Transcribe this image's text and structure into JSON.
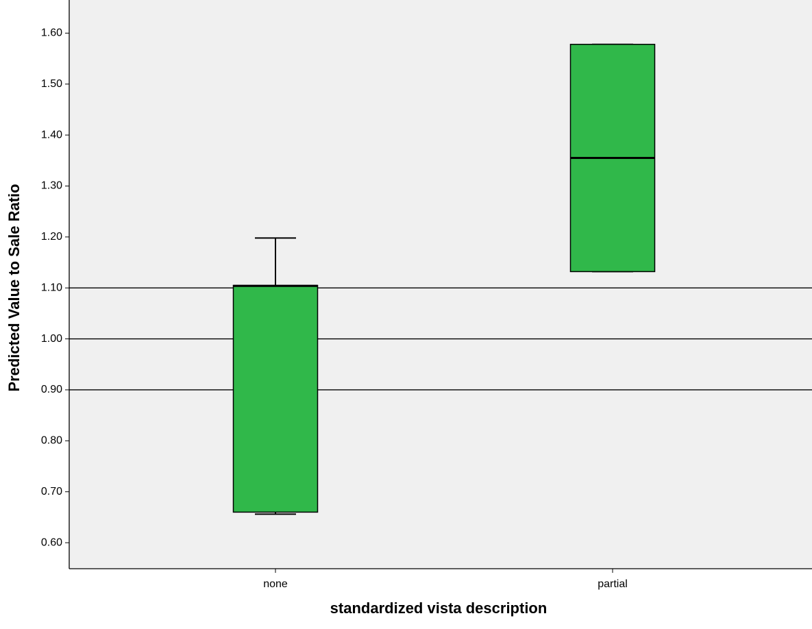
{
  "chart_data": {
    "type": "box",
    "x_label": "standardized vista description",
    "y_label": "Predicted Value to Sale Ratio",
    "categories": [
      "none",
      "partial"
    ],
    "min": [
      0.656,
      1.132
    ],
    "q1": [
      0.66,
      1.132
    ],
    "median": [
      1.104,
      1.355
    ],
    "q3": [
      1.105,
      1.578
    ],
    "max": [
      1.198,
      1.578
    ],
    "color": "#30b84a",
    "ylim": [
      0.549,
      1.665
    ],
    "yticks": [
      {
        "value": 0.6,
        "label": "0.60"
      },
      {
        "value": 0.7,
        "label": "0.70"
      },
      {
        "value": 0.8,
        "label": "0.80"
      },
      {
        "value": 0.9,
        "label": "0.90"
      },
      {
        "value": 1.0,
        "label": "1.00"
      },
      {
        "value": 1.1,
        "label": "1.10"
      },
      {
        "value": 1.2,
        "label": "1.20"
      },
      {
        "value": 1.3,
        "label": "1.30"
      },
      {
        "value": 1.4,
        "label": "1.40"
      },
      {
        "value": 1.5,
        "label": "1.50"
      },
      {
        "value": 1.6,
        "label": "1.60"
      }
    ],
    "reference_lines": [
      0.9,
      1.0,
      1.1
    ],
    "grid": false
  }
}
